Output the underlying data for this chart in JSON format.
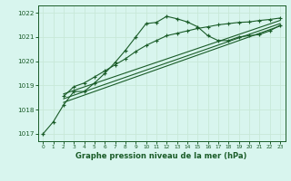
{
  "bg_color": "#d8f5ee",
  "grid_color": "#c8e8d8",
  "line_color": "#1a5c28",
  "title": "Graphe pression niveau de la mer (hPa)",
  "xlim": [
    -0.5,
    23.5
  ],
  "ylim": [
    1016.7,
    1022.3
  ],
  "yticks": [
    1017,
    1018,
    1019,
    1020,
    1021,
    1022
  ],
  "xticks": [
    0,
    1,
    2,
    3,
    4,
    5,
    6,
    7,
    8,
    9,
    10,
    11,
    12,
    13,
    14,
    15,
    16,
    17,
    18,
    19,
    20,
    21,
    22,
    23
  ],
  "series1_x": [
    0,
    1,
    2,
    3,
    4,
    5,
    6,
    7,
    8,
    9,
    10,
    11,
    12,
    13,
    14,
    15,
    16,
    17,
    18,
    19,
    20,
    21,
    22,
    23
  ],
  "series1_y": [
    1017.0,
    1017.5,
    1018.2,
    1018.75,
    1018.75,
    1019.1,
    1019.5,
    1019.95,
    1020.45,
    1021.0,
    1021.55,
    1021.6,
    1021.85,
    1021.75,
    1021.62,
    1021.42,
    1021.05,
    1020.85,
    1020.85,
    1021.0,
    1021.05,
    1021.1,
    1021.25,
    1021.48
  ],
  "series2_x": [
    2,
    3,
    4,
    5,
    6,
    7,
    8,
    9,
    10,
    11,
    12,
    13,
    14,
    15,
    16,
    17,
    18,
    19,
    20,
    21,
    22,
    23
  ],
  "series2_y": [
    1018.55,
    1018.95,
    1019.1,
    1019.35,
    1019.6,
    1019.85,
    1020.1,
    1020.4,
    1020.65,
    1020.85,
    1021.05,
    1021.15,
    1021.25,
    1021.35,
    1021.42,
    1021.5,
    1021.55,
    1021.6,
    1021.62,
    1021.68,
    1021.72,
    1021.78
  ],
  "series3_x": [
    2,
    23
  ],
  "series3_y": [
    1018.65,
    1021.68
  ],
  "series4_x": [
    2,
    23
  ],
  "series4_y": [
    1018.45,
    1021.55
  ],
  "series5_x": [
    2,
    23
  ],
  "series5_y": [
    1018.3,
    1021.45
  ]
}
